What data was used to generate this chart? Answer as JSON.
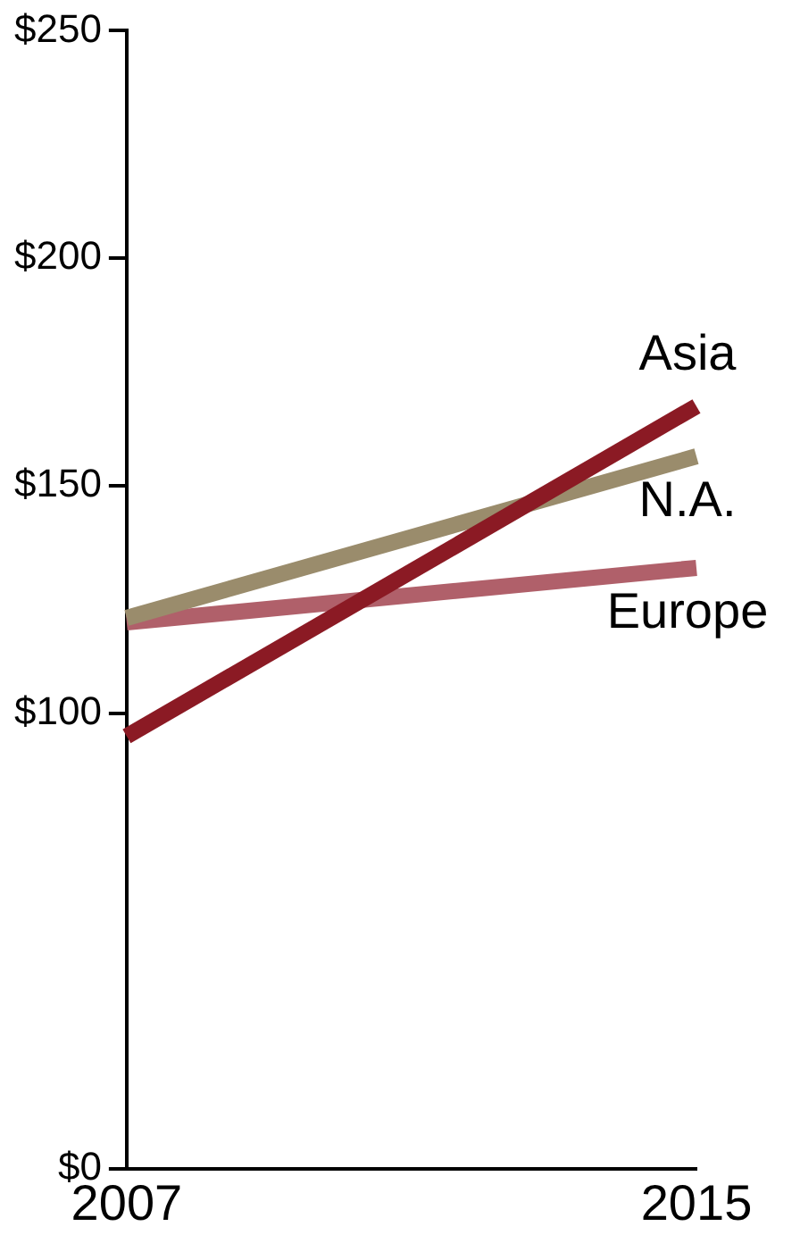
{
  "chart_data": {
    "type": "line",
    "categories": [
      "2007",
      "2015"
    ],
    "series": [
      {
        "name": "Asia",
        "color": "#8b1a24",
        "values": [
          95,
          167.5
        ]
      },
      {
        "name": "N.A.",
        "color": "#9a8c6c",
        "values": [
          121,
          156.5
        ]
      },
      {
        "name": "Europe",
        "color": "#b0606a",
        "values": [
          120,
          132
        ]
      }
    ],
    "ylim": [
      0,
      250
    ],
    "yticks": [
      {
        "value": 0,
        "label": "$0"
      },
      {
        "value": 100,
        "label": "$100"
      },
      {
        "value": 150,
        "label": "$150"
      },
      {
        "value": 200,
        "label": "$200"
      },
      {
        "value": 250,
        "label": "$250"
      }
    ],
    "grid": false,
    "legend": false,
    "marker": "none",
    "line_style": "solid"
  }
}
